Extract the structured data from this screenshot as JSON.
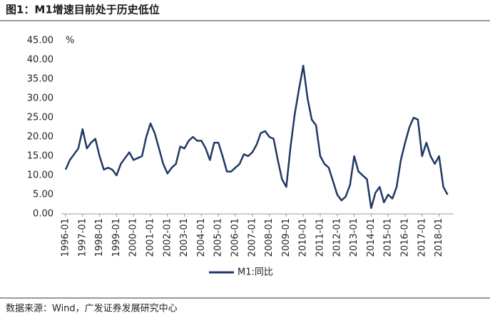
{
  "chart_data": {
    "type": "line",
    "title": "图1：M1增速目前处于历史低位",
    "source": "数据来源：Wind，广发证券发展研究中心",
    "y_unit": "%",
    "categories": [
      "1996-01",
      null,
      null,
      null,
      "1997-01",
      null,
      null,
      null,
      "1998-01",
      null,
      null,
      null,
      "1999-01",
      null,
      null,
      null,
      "2000-01",
      null,
      null,
      null,
      "2001-01",
      null,
      null,
      null,
      "2002-01",
      null,
      null,
      null,
      "2003-01",
      null,
      null,
      null,
      "2004-01",
      null,
      null,
      null,
      "2005-01",
      null,
      null,
      null,
      "2006-01",
      null,
      null,
      null,
      "2007-01",
      null,
      null,
      null,
      "2008-01",
      null,
      null,
      null,
      "2009-01",
      null,
      null,
      null,
      "2010-01",
      null,
      null,
      null,
      "2011-01",
      null,
      null,
      null,
      "2012-01",
      null,
      null,
      null,
      "2013-01",
      null,
      null,
      null,
      "2014-01",
      null,
      null,
      null,
      "2015-01",
      null,
      null,
      null,
      "2016-01",
      null,
      null,
      null,
      "2017-01",
      null,
      null,
      null,
      "2018-01",
      null,
      null
    ],
    "series": [
      {
        "name": "M1:同比",
        "color": "#203864",
        "values": [
          11.5,
          14,
          15.5,
          17,
          22,
          17,
          18.5,
          19.5,
          15,
          11.5,
          12,
          11.5,
          10,
          13,
          14.5,
          16,
          14,
          14.5,
          15,
          20,
          23.5,
          21,
          17,
          13,
          10.5,
          12,
          13,
          17.5,
          17,
          19,
          20,
          19,
          19,
          17,
          14,
          18.5,
          18.5,
          15,
          11,
          11,
          12,
          13,
          15.5,
          15,
          16,
          18,
          21,
          21.5,
          20,
          19.5,
          14,
          9,
          7,
          17.5,
          26,
          32.5,
          38.5,
          30,
          24.5,
          23,
          15,
          13,
          12,
          8.5,
          5,
          3.5,
          4.5,
          7.5,
          15,
          11,
          10,
          9,
          1.5,
          5.5,
          7,
          3,
          5,
          4,
          7,
          14,
          18.5,
          22.5,
          25,
          24.5,
          15,
          18.5,
          15,
          13,
          15,
          7,
          5
        ]
      }
    ],
    "ylim": [
      0,
      45
    ],
    "yticks": [
      {
        "value": 0,
        "label": "0.00"
      },
      {
        "value": 5,
        "label": "5.00"
      },
      {
        "value": 10,
        "label": "10.00"
      },
      {
        "value": 15,
        "label": "15.00"
      },
      {
        "value": 20,
        "label": "20.00"
      },
      {
        "value": 25,
        "label": "25.00"
      },
      {
        "value": 30,
        "label": "30.00"
      },
      {
        "value": 35,
        "label": "35.00"
      },
      {
        "value": 40,
        "label": "40.00"
      },
      {
        "value": 45,
        "label": "45.00"
      }
    ],
    "legend": "bottom"
  }
}
